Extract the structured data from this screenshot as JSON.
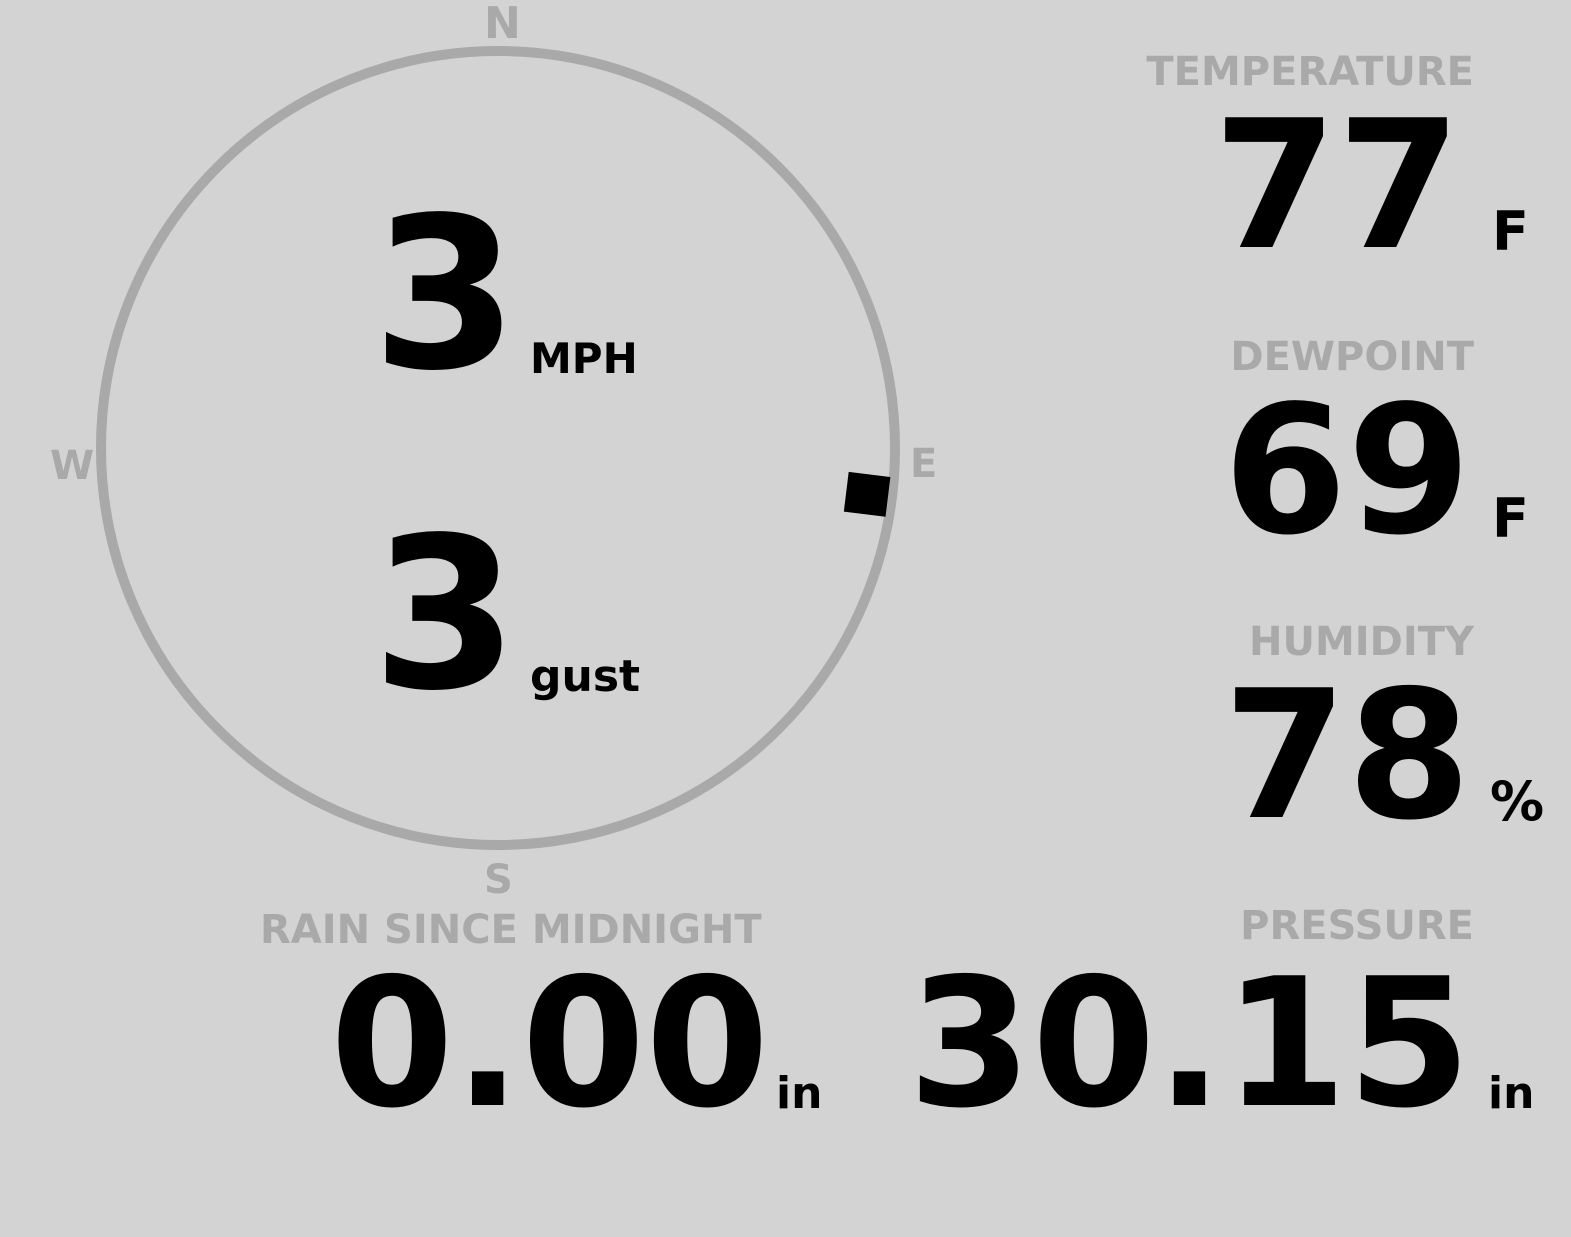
{
  "wind": {
    "compass": {
      "n": "N",
      "e": "E",
      "s": "S",
      "w": "W"
    },
    "direction_deg": 97,
    "speed": "3",
    "speed_unit": "MPH",
    "gust": "3",
    "gust_unit": "gust"
  },
  "temperature": {
    "label": "TEMPERATURE",
    "value": "77",
    "unit": "F"
  },
  "dewpoint": {
    "label": "DEWPOINT",
    "value": "69",
    "unit": "F"
  },
  "humidity": {
    "label": "HUMIDITY",
    "value": "78",
    "unit": "%"
  },
  "rain": {
    "label": "RAIN SINCE MIDNIGHT",
    "value": "0.00",
    "unit": "in"
  },
  "pressure": {
    "label": "PRESSURE",
    "value": "30.15",
    "unit": "in"
  },
  "colors": {
    "background": "#d3d3d3",
    "label": "#a9a9a9",
    "value": "#000000"
  }
}
